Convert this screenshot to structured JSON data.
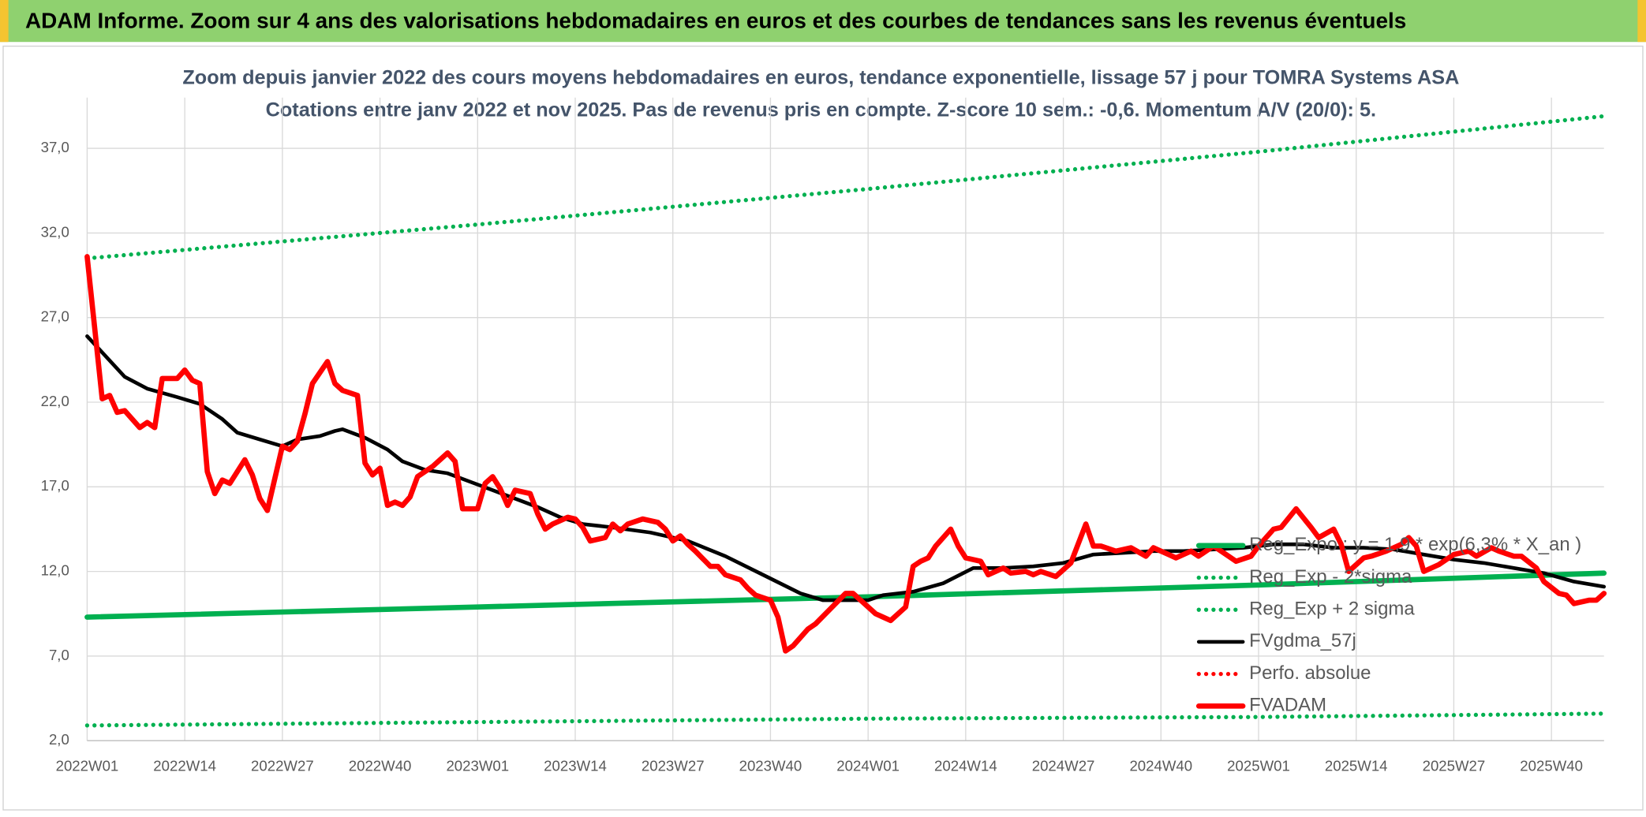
{
  "chart_data": {
    "type": "line",
    "title": "ADAM Informe. Zoom sur 4 ans des valorisations hebdomadaires en euros et des courbes de tendances sans les revenus éventuels",
    "subtitle": [
      "Zoom depuis janvier 2022 des cours moyens hebdomadaires en euros, tendance exponentielle, lissage 57 j pour TOMRA Systems ASA",
      "Cotations entre janv 2022 et nov 2025. Pas de revenus pris en compte. Z-score 10 sem.: -0,6. Momentum A/V (20/0): 5."
    ],
    "xlim": [
      0,
      202
    ],
    "xticks": [
      {
        "value": 0,
        "label": "2022W01"
      },
      {
        "value": 13,
        "label": "2022W14"
      },
      {
        "value": 26,
        "label": "2022W27"
      },
      {
        "value": 39,
        "label": "2022W40"
      },
      {
        "value": 52,
        "label": "2023W01"
      },
      {
        "value": 65,
        "label": "2023W14"
      },
      {
        "value": 78,
        "label": "2023W27"
      },
      {
        "value": 91,
        "label": "2023W40"
      },
      {
        "value": 104,
        "label": "2024W01"
      },
      {
        "value": 117,
        "label": "2024W14"
      },
      {
        "value": 130,
        "label": "2024W27"
      },
      {
        "value": 143,
        "label": "2024W40"
      },
      {
        "value": 156,
        "label": "2025W01"
      },
      {
        "value": 169,
        "label": "2025W14"
      },
      {
        "value": 182,
        "label": "2025W27"
      },
      {
        "value": 195,
        "label": "2025W40"
      }
    ],
    "ylim": [
      2,
      40
    ],
    "yticks": [
      {
        "value": 2,
        "label": "2,0"
      },
      {
        "value": 7,
        "label": "7,0"
      },
      {
        "value": 12,
        "label": "12,0"
      },
      {
        "value": 17,
        "label": "17,0"
      },
      {
        "value": 22,
        "label": "22,0"
      },
      {
        "value": 27,
        "label": "27,0"
      },
      {
        "value": 32,
        "label": "32,0"
      },
      {
        "value": 37,
        "label": "37,0"
      }
    ],
    "grid": true,
    "series": [
      {
        "name": "Reg_Expo : y = 1,9 * exp(6,3% * X_an )",
        "color": "#00b050",
        "style": "solid",
        "width": 5,
        "x": [
          0,
          52,
          104,
          156,
          202
        ],
        "values": [
          9.3,
          9.9,
          10.5,
          11.2,
          11.9
        ]
      },
      {
        "name": "Reg_Exp - 2*sigma",
        "color": "#00b050",
        "style": "dotted",
        "width": 4,
        "x": [
          0,
          52,
          104,
          156,
          202
        ],
        "values": [
          2.9,
          3.1,
          3.3,
          3.4,
          3.6
        ]
      },
      {
        "name": "Reg_Exp + 2 sigma",
        "color": "#00b050",
        "style": "dotted",
        "width": 4,
        "x": [
          0,
          52,
          104,
          156,
          202
        ],
        "values": [
          30.5,
          32.5,
          34.6,
          36.8,
          38.9
        ]
      },
      {
        "name": "FVgdma_57j",
        "color": "#000000",
        "style": "solid",
        "width": 3.5,
        "x": [
          0,
          5,
          8,
          12,
          15,
          18,
          20,
          23,
          26,
          28,
          31,
          33,
          34,
          37,
          40,
          42,
          45,
          48,
          51,
          54,
          57,
          60,
          63,
          66,
          70,
          75,
          80,
          85,
          90,
          95,
          98,
          104,
          106,
          110,
          114,
          118,
          122,
          126,
          130,
          134,
          138,
          142,
          146,
          150,
          154,
          158,
          162,
          166,
          170,
          174,
          178,
          182,
          186,
          190,
          194,
          198,
          202
        ],
        "values": [
          25.9,
          23.5,
          22.8,
          22.3,
          21.9,
          21.0,
          20.2,
          19.8,
          19.4,
          19.8,
          20.0,
          20.3,
          20.4,
          19.9,
          19.2,
          18.5,
          18.0,
          17.8,
          17.3,
          16.8,
          16.3,
          15.8,
          15.2,
          14.8,
          14.6,
          14.3,
          13.8,
          12.9,
          11.8,
          10.7,
          10.3,
          10.3,
          10.6,
          10.8,
          11.3,
          12.2,
          12.2,
          12.3,
          12.5,
          13.0,
          13.1,
          13.2,
          13.2,
          13.3,
          13.4,
          13.6,
          13.6,
          13.4,
          13.4,
          13.3,
          13.0,
          12.7,
          12.5,
          12.2,
          11.9,
          11.4,
          11.1
        ]
      },
      {
        "name": "Perfo. absolue",
        "color": "#ff0000",
        "style": "dotted",
        "width": 4,
        "x": [],
        "values": []
      },
      {
        "name": "FVADAM",
        "color": "#ff0000",
        "style": "solid",
        "width": 5,
        "x": [
          0,
          2,
          3,
          4,
          5,
          7,
          8,
          9,
          10,
          12,
          13,
          14,
          15,
          16,
          17,
          18,
          19,
          21,
          22,
          23,
          24,
          26,
          27,
          28,
          29,
          30,
          32,
          33,
          34,
          36,
          37,
          38,
          39,
          40,
          41,
          42,
          43,
          44,
          46,
          48,
          49,
          50,
          52,
          53,
          54,
          55,
          56,
          57,
          59,
          60,
          61,
          62,
          64,
          65,
          66,
          67,
          69,
          70,
          71,
          72,
          74,
          76,
          77,
          78,
          79,
          80,
          81,
          83,
          84,
          85,
          87,
          88,
          89,
          91,
          92,
          93,
          94,
          96,
          97,
          99,
          101,
          102,
          103,
          105,
          106,
          107,
          109,
          110,
          111,
          112,
          113,
          115,
          116,
          117,
          119,
          120,
          122,
          123,
          125,
          126,
          127,
          129,
          131,
          133,
          134,
          135,
          137,
          139,
          141,
          142,
          144,
          145,
          147,
          148,
          150,
          152,
          153,
          155,
          156,
          158,
          159,
          161,
          163,
          164,
          166,
          167,
          168,
          170,
          171,
          173,
          175,
          176,
          177,
          178,
          180,
          182,
          184,
          185,
          187,
          188,
          190,
          191,
          193,
          194,
          196,
          197,
          198,
          200,
          201,
          202
        ],
        "values": [
          30.6,
          22.2,
          22.4,
          21.4,
          21.5,
          20.5,
          20.8,
          20.5,
          23.4,
          23.4,
          23.9,
          23.3,
          23.1,
          17.9,
          16.6,
          17.4,
          17.2,
          18.6,
          17.7,
          16.3,
          15.6,
          19.4,
          19.2,
          19.7,
          21.3,
          23.1,
          24.4,
          23.1,
          22.7,
          22.4,
          18.4,
          17.7,
          18.1,
          15.9,
          16.1,
          15.9,
          16.4,
          17.6,
          18.2,
          19.0,
          18.5,
          15.7,
          15.7,
          17.2,
          17.6,
          16.9,
          15.9,
          16.8,
          16.6,
          15.4,
          14.5,
          14.8,
          15.2,
          15.1,
          14.6,
          13.8,
          14.0,
          14.8,
          14.4,
          14.8,
          15.1,
          14.9,
          14.5,
          13.8,
          14.1,
          13.6,
          13.2,
          12.3,
          12.3,
          11.8,
          11.5,
          11.0,
          10.6,
          10.3,
          9.3,
          7.3,
          7.6,
          8.6,
          8.9,
          9.8,
          10.7,
          10.7,
          10.3,
          9.5,
          9.3,
          9.1,
          9.9,
          12.3,
          12.6,
          12.8,
          13.5,
          14.5,
          13.5,
          12.8,
          12.6,
          11.8,
          12.2,
          11.9,
          12.0,
          11.8,
          12.0,
          11.7,
          12.5,
          14.8,
          13.5,
          13.5,
          13.2,
          13.4,
          12.9,
          13.4,
          13.0,
          12.8,
          13.2,
          12.9,
          13.5,
          12.9,
          12.6,
          12.9,
          13.5,
          14.5,
          14.6,
          15.7,
          14.6,
          14.0,
          14.5,
          13.6,
          12.0,
          12.8,
          12.9,
          13.2,
          13.6,
          14.0,
          13.5,
          12.0,
          12.4,
          13.0,
          13.2,
          12.9,
          13.4,
          13.2,
          12.9,
          12.9,
          12.2,
          11.4,
          10.7,
          10.6,
          10.1,
          10.3,
          10.3,
          10.7
        ]
      }
    ]
  }
}
